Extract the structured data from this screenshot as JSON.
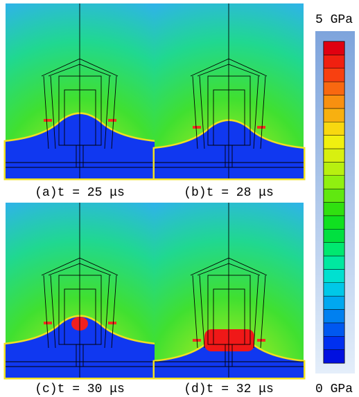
{
  "panels": [
    {
      "caption": "(a)t = 25 μs"
    },
    {
      "caption": "(b)t = 28 μs"
    },
    {
      "caption": "(c)t = 30 μs"
    },
    {
      "caption": "(d)t = 32 μs"
    }
  ],
  "colorbar": {
    "max_label": "5 GPa",
    "min_label": "0 GPa"
  }
}
